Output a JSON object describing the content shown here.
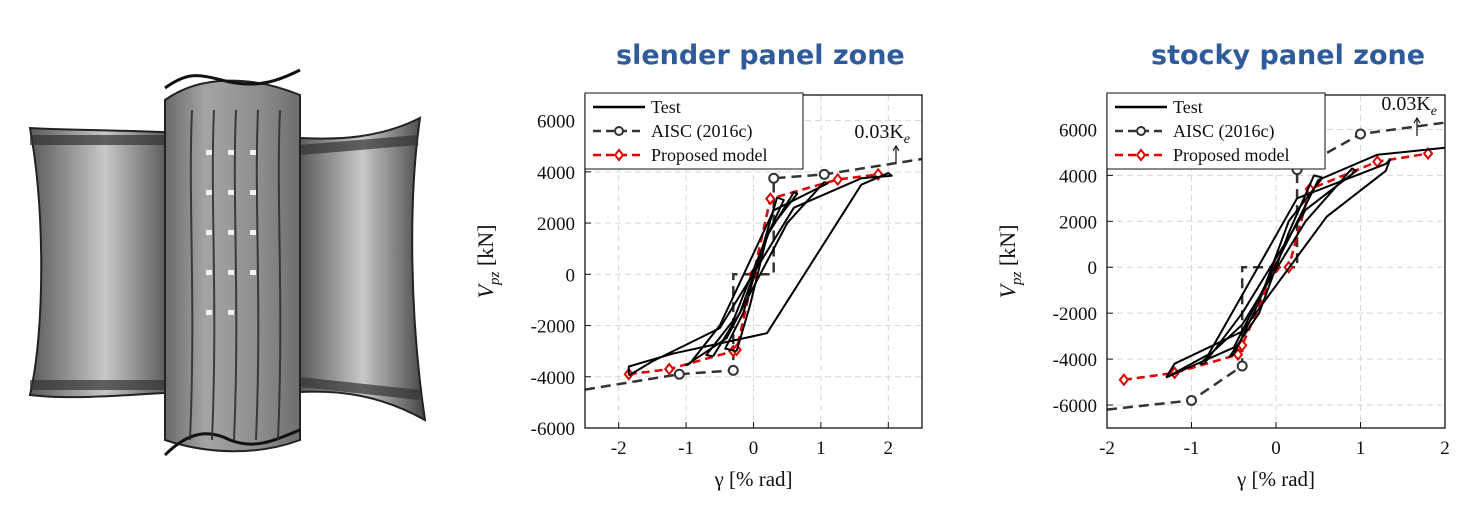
{
  "titles": [
    "slender panel zone",
    "stocky panel zone"
  ],
  "colors": {
    "title": "#2f5b9a",
    "test": "#000000",
    "aisc": "#333333",
    "proposed": "#e00000"
  },
  "photo": {
    "icon": "panel-zone-specimen-photo"
  },
  "chart_data": [
    {
      "type": "line",
      "title": "slender panel zone",
      "xlabel": "γ [% rad]",
      "ylabel_main": "V",
      "ylabel_sub": "pz",
      "ylabel_unit": " [kN]",
      "xlim": [
        -2.5,
        2.5
      ],
      "ylim": [
        -6000,
        7000
      ],
      "xticks": [
        -2,
        -1,
        0,
        1,
        2
      ],
      "yticks": [
        -6000,
        -4000,
        -2000,
        0,
        2000,
        4000,
        6000
      ],
      "grid": true,
      "legend_position": "top-left",
      "annotation": {
        "text_main": "0.03K",
        "text_sub": "e"
      },
      "legend": [
        "Test",
        "AISC (2016c)",
        "Proposed model"
      ],
      "series": [
        {
          "name": "AISC (2016c)",
          "style": "dashed-circle",
          "x": [
            -2.5,
            -1.1,
            -0.3,
            -0.3,
            0.3,
            0.3,
            1.05,
            2.5
          ],
          "y": [
            -4500,
            -3900,
            -3750,
            0,
            0,
            3750,
            3900,
            4500
          ],
          "markers": [
            [
              -1.1,
              -3900
            ],
            [
              -0.3,
              -3750
            ],
            [
              0.3,
              3750
            ],
            [
              1.05,
              3900
            ]
          ]
        },
        {
          "name": "Proposed model",
          "style": "dashed-diamond",
          "x": [
            -1.85,
            -1.25,
            -0.3,
            -0.25,
            0,
            0.25,
            1.25,
            1.85
          ],
          "y": [
            -3900,
            -3700,
            -3000,
            -2950,
            0,
            2950,
            3700,
            3900
          ]
        },
        {
          "name": "Test",
          "style": "solid",
          "loops": [
            {
              "x": [
                -0.25,
                -0.05,
                0.2,
                0.45,
                0.35,
                0.15,
                -0.15,
                -0.42,
                -0.25
              ],
              "y": [
                -3000,
                -1200,
                1500,
                2900,
                3000,
                1200,
                -1500,
                -2900,
                -3000
              ]
            },
            {
              "x": [
                -0.6,
                -0.2,
                0.25,
                0.65,
                0.6,
                0.2,
                -0.3,
                -0.7,
                -0.6
              ],
              "y": [
                -3200,
                -1500,
                1800,
                3150,
                3200,
                1500,
                -1800,
                -3150,
                -3200
              ]
            },
            {
              "x": [
                -0.95,
                -0.5,
                0.3,
                1.1,
                1.05,
                0.5,
                -0.4,
                -1.0,
                -0.95
              ],
              "y": [
                -3500,
                -2000,
                2500,
                3550,
                3600,
                2000,
                -2500,
                -3550,
                -3500
              ]
            },
            {
              "x": [
                -1.85,
                -1.5,
                -0.5,
                0.6,
                1.6,
                2.05,
                2.0,
                1.6,
                0.2,
                -1.2,
                -1.85,
                -1.85
              ],
              "y": [
                -3950,
                -3400,
                -2100,
                2600,
                3750,
                3850,
                3950,
                3500,
                -2300,
                -3100,
                -3600,
                -3950
              ]
            }
          ]
        }
      ]
    },
    {
      "type": "line",
      "title": "stocky panel zone",
      "xlabel": "γ [% rad]",
      "ylabel_main": "V",
      "ylabel_sub": "pz",
      "ylabel_unit": " [kN]",
      "xlim": [
        -2,
        2
      ],
      "ylim": [
        -7000,
        7500
      ],
      "xticks": [
        -2,
        -1,
        0,
        1,
        2
      ],
      "yticks": [
        -6000,
        -4000,
        -2000,
        0,
        2000,
        4000,
        6000
      ],
      "grid": true,
      "legend_position": "top-left",
      "annotation": {
        "text_main": "0.03K",
        "text_sub": "e"
      },
      "legend": [
        "Test",
        "AISC (2016c)",
        "Proposed model"
      ],
      "series": [
        {
          "name": "AISC (2016c)",
          "style": "dashed-circle",
          "x": [
            -2.0,
            -1.0,
            -0.4,
            -0.4,
            0.25,
            0.25,
            1.0,
            2.0
          ],
          "y": [
            -6200,
            -5800,
            -4300,
            0,
            0,
            4250,
            5800,
            6300
          ],
          "markers": [
            [
              -1.0,
              -5800
            ],
            [
              -0.4,
              -4300
            ],
            [
              0.25,
              4250
            ],
            [
              1.0,
              5800
            ]
          ]
        },
        {
          "name": "Proposed model",
          "style": "dashed-diamond",
          "x": [
            -1.8,
            -1.2,
            -0.45,
            -0.4,
            0,
            0.15,
            0.4,
            1.2,
            1.8
          ],
          "y": [
            -4900,
            -4600,
            -3800,
            -3400,
            0,
            0,
            3400,
            4600,
            4950
          ]
        },
        {
          "name": "Test",
          "style": "solid",
          "loops": [
            {
              "x": [
                -0.5,
                -0.2,
                0.15,
                0.55,
                0.45,
                0.15,
                -0.2,
                -0.55,
                -0.5
              ],
              "y": [
                -3800,
                -1500,
                2000,
                3900,
                4000,
                1500,
                -2000,
                -3900,
                -3800
              ]
            },
            {
              "x": [
                -0.85,
                -0.4,
                0.35,
                0.95,
                0.9,
                0.35,
                -0.4,
                -0.9,
                -0.85
              ],
              "y": [
                -4200,
                -2000,
                2500,
                4200,
                4300,
                2000,
                -2500,
                -4200,
                -4200
              ]
            },
            {
              "x": [
                -1.3,
                -0.8,
                0.25,
                1.3,
                1.35,
                1.3,
                0.6,
                -0.4,
                -1.2,
                -1.3
              ],
              "y": [
                -4800,
                -3800,
                3000,
                4500,
                4700,
                4200,
                2200,
                -2800,
                -4200,
                -4800
              ]
            },
            {
              "x": [
                -1.3,
                -0.5,
                0.5,
                1.2,
                2.0
              ],
              "y": [
                -4800,
                -3500,
                3800,
                4900,
                5200
              ]
            }
          ]
        }
      ]
    }
  ]
}
